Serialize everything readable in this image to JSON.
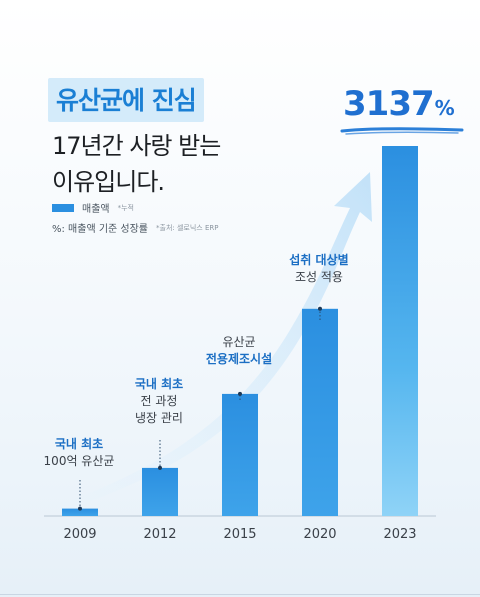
{
  "header": {
    "headline": "유산균에 진심",
    "sub_line1": "17년간 사랑 받는",
    "sub_line2": "이유입니다."
  },
  "legend": {
    "series_label": "매출액",
    "series_note": "*누적",
    "pct_label": "%: 매출액 기준 성장률",
    "source_note": "*출처: 셀로닉스 ERP"
  },
  "highlight": {
    "growth_value": "3137",
    "growth_unit": "%"
  },
  "annotations": [
    {
      "highlight": "국내 최초",
      "lines": [
        "100억 유산균"
      ]
    },
    {
      "highlight": "국내 최초",
      "lines": [
        "전 과정",
        "냉장 관리"
      ]
    },
    {
      "highlight": "전용제조시설",
      "lines": [
        "유산균"
      ],
      "highlight_after": true
    },
    {
      "highlight": "섭취 대상별",
      "lines": [
        "조성 적용"
      ]
    }
  ],
  "chart_data": {
    "type": "bar",
    "categories": [
      "2009",
      "2012",
      "2015",
      "2020",
      "2023"
    ],
    "values": [
      2,
      13,
      33,
      56,
      100
    ],
    "ylim": [
      0,
      100
    ],
    "series": [
      {
        "name": "매출액",
        "values": [
          2,
          13,
          33,
          56,
          100
        ]
      }
    ],
    "bar_color": "#2b8fe0",
    "bar_color_last_bottom": "#8fd3f7",
    "arrow_color": "#cfe8fa"
  }
}
